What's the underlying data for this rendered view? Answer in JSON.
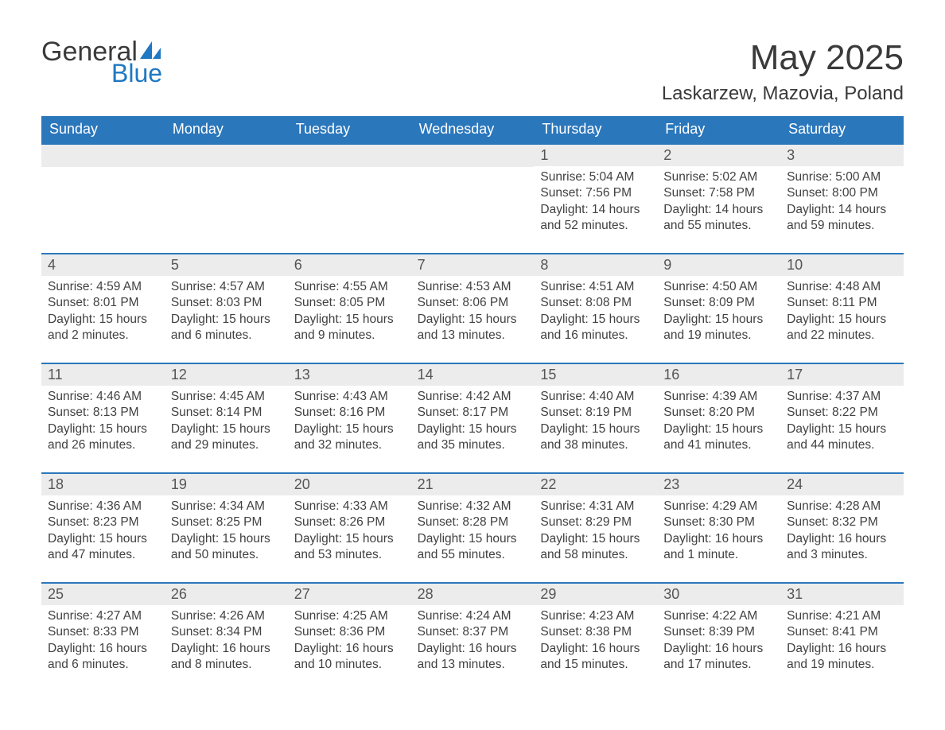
{
  "logo": {
    "word1": "General",
    "word2": "Blue",
    "shape_color": "#1f78c1"
  },
  "title": "May 2025",
  "location": "Laskarzew, Mazovia, Poland",
  "colors": {
    "header_bg": "#2b77bc",
    "header_text": "#ffffff",
    "daynum_bg": "#ececec",
    "text": "#414141",
    "rule": "#2b77bc"
  },
  "weekdays": [
    "Sunday",
    "Monday",
    "Tuesday",
    "Wednesday",
    "Thursday",
    "Friday",
    "Saturday"
  ],
  "weeks": [
    [
      null,
      null,
      null,
      null,
      {
        "n": "1",
        "sunrise": "5:04 AM",
        "sunset": "7:56 PM",
        "daylight": "14 hours and 52 minutes."
      },
      {
        "n": "2",
        "sunrise": "5:02 AM",
        "sunset": "7:58 PM",
        "daylight": "14 hours and 55 minutes."
      },
      {
        "n": "3",
        "sunrise": "5:00 AM",
        "sunset": "8:00 PM",
        "daylight": "14 hours and 59 minutes."
      }
    ],
    [
      {
        "n": "4",
        "sunrise": "4:59 AM",
        "sunset": "8:01 PM",
        "daylight": "15 hours and 2 minutes."
      },
      {
        "n": "5",
        "sunrise": "4:57 AM",
        "sunset": "8:03 PM",
        "daylight": "15 hours and 6 minutes."
      },
      {
        "n": "6",
        "sunrise": "4:55 AM",
        "sunset": "8:05 PM",
        "daylight": "15 hours and 9 minutes."
      },
      {
        "n": "7",
        "sunrise": "4:53 AM",
        "sunset": "8:06 PM",
        "daylight": "15 hours and 13 minutes."
      },
      {
        "n": "8",
        "sunrise": "4:51 AM",
        "sunset": "8:08 PM",
        "daylight": "15 hours and 16 minutes."
      },
      {
        "n": "9",
        "sunrise": "4:50 AM",
        "sunset": "8:09 PM",
        "daylight": "15 hours and 19 minutes."
      },
      {
        "n": "10",
        "sunrise": "4:48 AM",
        "sunset": "8:11 PM",
        "daylight": "15 hours and 22 minutes."
      }
    ],
    [
      {
        "n": "11",
        "sunrise": "4:46 AM",
        "sunset": "8:13 PM",
        "daylight": "15 hours and 26 minutes."
      },
      {
        "n": "12",
        "sunrise": "4:45 AM",
        "sunset": "8:14 PM",
        "daylight": "15 hours and 29 minutes."
      },
      {
        "n": "13",
        "sunrise": "4:43 AM",
        "sunset": "8:16 PM",
        "daylight": "15 hours and 32 minutes."
      },
      {
        "n": "14",
        "sunrise": "4:42 AM",
        "sunset": "8:17 PM",
        "daylight": "15 hours and 35 minutes."
      },
      {
        "n": "15",
        "sunrise": "4:40 AM",
        "sunset": "8:19 PM",
        "daylight": "15 hours and 38 minutes."
      },
      {
        "n": "16",
        "sunrise": "4:39 AM",
        "sunset": "8:20 PM",
        "daylight": "15 hours and 41 minutes."
      },
      {
        "n": "17",
        "sunrise": "4:37 AM",
        "sunset": "8:22 PM",
        "daylight": "15 hours and 44 minutes."
      }
    ],
    [
      {
        "n": "18",
        "sunrise": "4:36 AM",
        "sunset": "8:23 PM",
        "daylight": "15 hours and 47 minutes."
      },
      {
        "n": "19",
        "sunrise": "4:34 AM",
        "sunset": "8:25 PM",
        "daylight": "15 hours and 50 minutes."
      },
      {
        "n": "20",
        "sunrise": "4:33 AM",
        "sunset": "8:26 PM",
        "daylight": "15 hours and 53 minutes."
      },
      {
        "n": "21",
        "sunrise": "4:32 AM",
        "sunset": "8:28 PM",
        "daylight": "15 hours and 55 minutes."
      },
      {
        "n": "22",
        "sunrise": "4:31 AM",
        "sunset": "8:29 PM",
        "daylight": "15 hours and 58 minutes."
      },
      {
        "n": "23",
        "sunrise": "4:29 AM",
        "sunset": "8:30 PM",
        "daylight": "16 hours and 1 minute."
      },
      {
        "n": "24",
        "sunrise": "4:28 AM",
        "sunset": "8:32 PM",
        "daylight": "16 hours and 3 minutes."
      }
    ],
    [
      {
        "n": "25",
        "sunrise": "4:27 AM",
        "sunset": "8:33 PM",
        "daylight": "16 hours and 6 minutes."
      },
      {
        "n": "26",
        "sunrise": "4:26 AM",
        "sunset": "8:34 PM",
        "daylight": "16 hours and 8 minutes."
      },
      {
        "n": "27",
        "sunrise": "4:25 AM",
        "sunset": "8:36 PM",
        "daylight": "16 hours and 10 minutes."
      },
      {
        "n": "28",
        "sunrise": "4:24 AM",
        "sunset": "8:37 PM",
        "daylight": "16 hours and 13 minutes."
      },
      {
        "n": "29",
        "sunrise": "4:23 AM",
        "sunset": "8:38 PM",
        "daylight": "16 hours and 15 minutes."
      },
      {
        "n": "30",
        "sunrise": "4:22 AM",
        "sunset": "8:39 PM",
        "daylight": "16 hours and 17 minutes."
      },
      {
        "n": "31",
        "sunrise": "4:21 AM",
        "sunset": "8:41 PM",
        "daylight": "16 hours and 19 minutes."
      }
    ]
  ],
  "labels": {
    "sunrise": "Sunrise: ",
    "sunset": "Sunset: ",
    "daylight": "Daylight: "
  }
}
